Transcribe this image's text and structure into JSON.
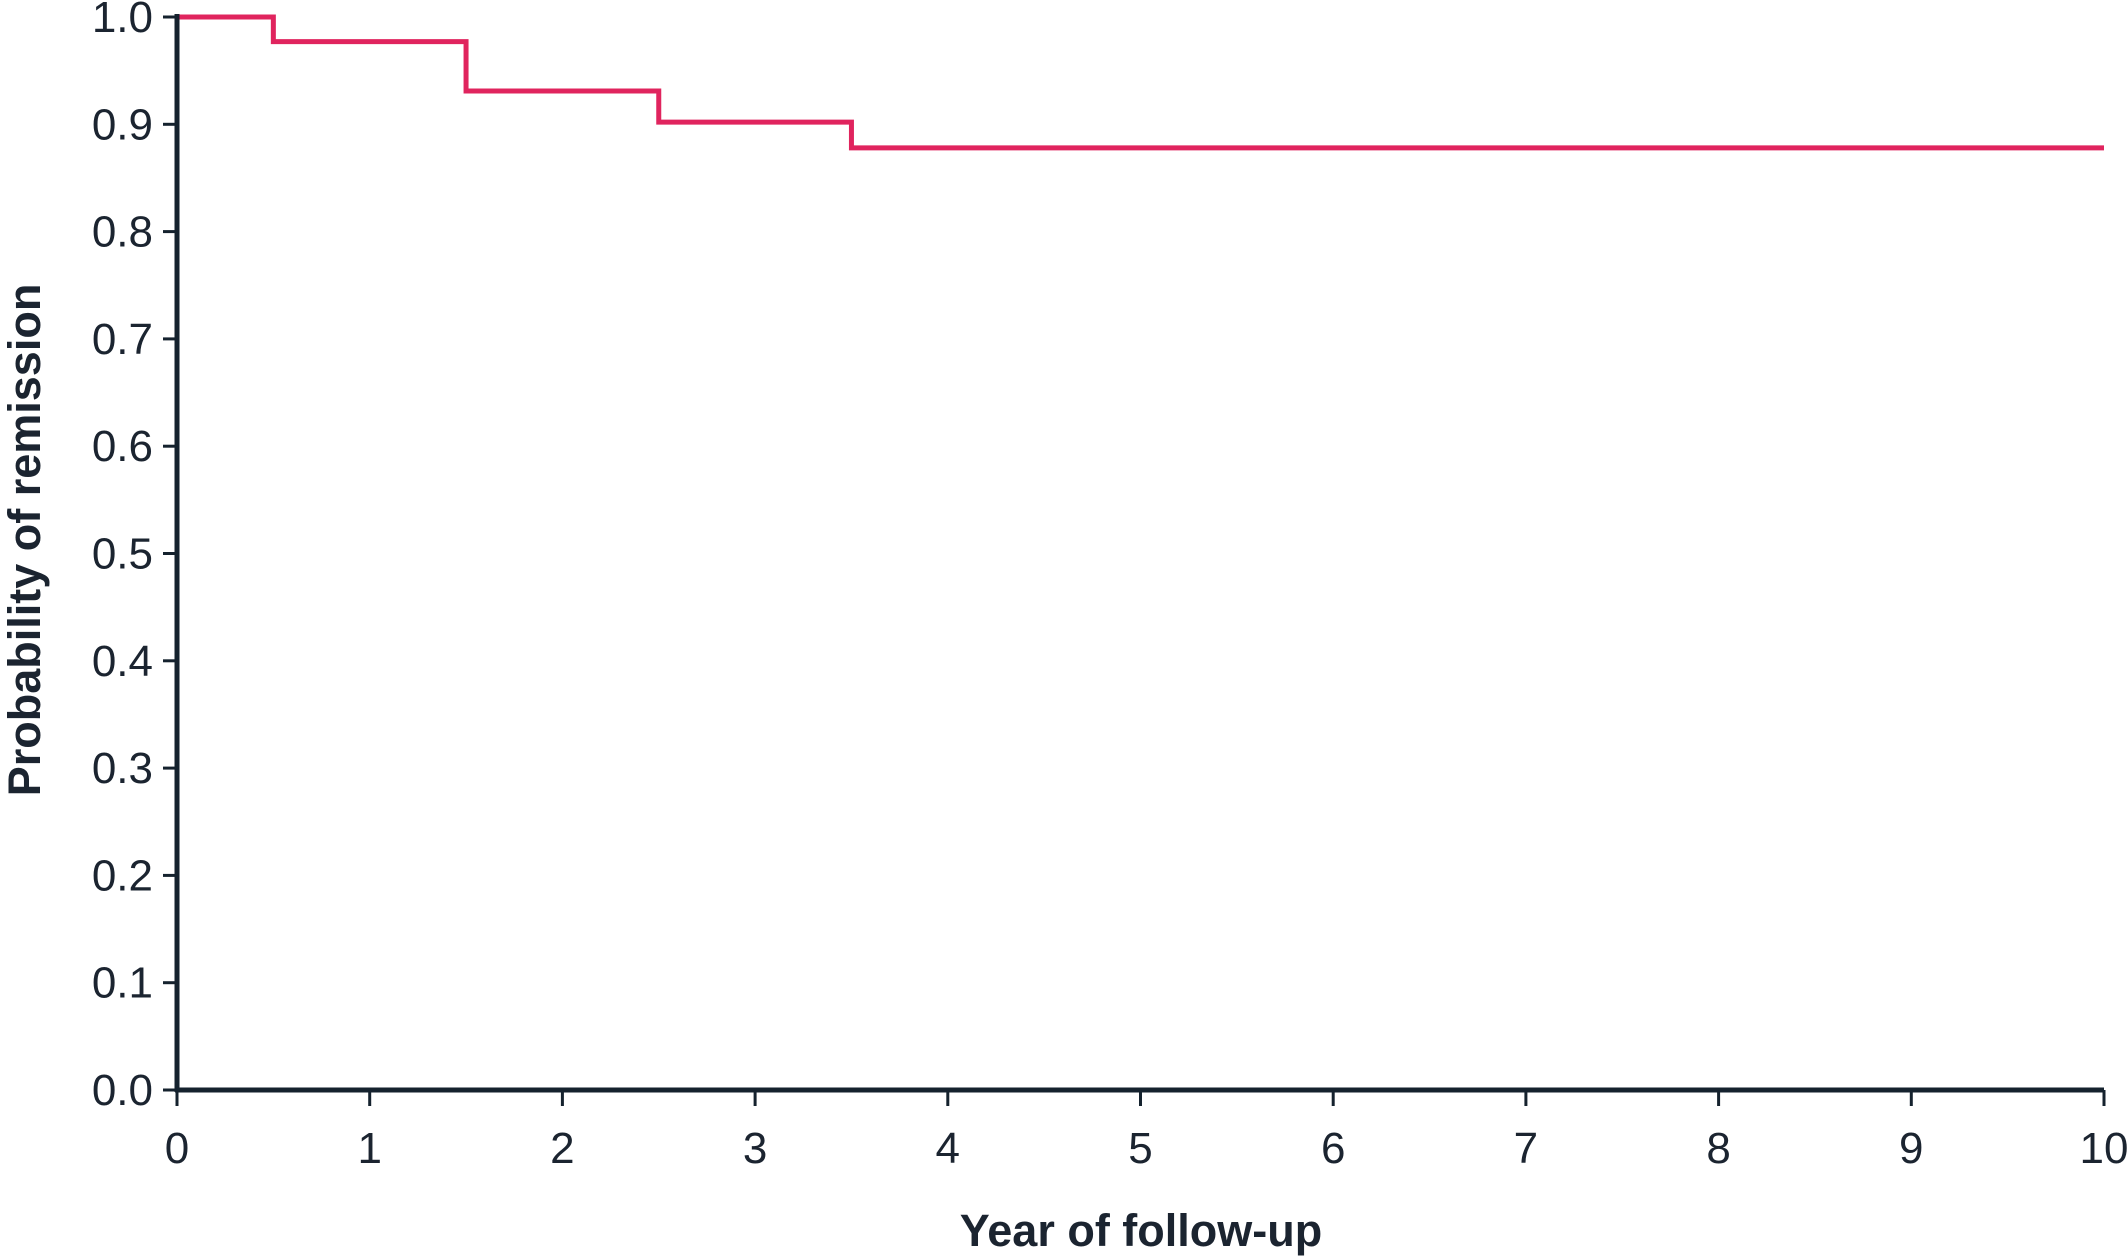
{
  "chart_data": {
    "type": "line",
    "subtype": "step",
    "title": "",
    "xlabel": "Year of follow-up",
    "ylabel": "Probability of remission",
    "xlim": [
      0,
      10
    ],
    "ylim": [
      0.0,
      1.0
    ],
    "x_ticks": [
      "0",
      "1",
      "2",
      "3",
      "4",
      "5",
      "6",
      "7",
      "8",
      "9",
      "10"
    ],
    "y_ticks": [
      "0.0",
      "0.1",
      "0.2",
      "0.3",
      "0.4",
      "0.5",
      "0.6",
      "0.7",
      "0.8",
      "0.9",
      "1.0"
    ],
    "grid": false,
    "legend": "none",
    "colors": {
      "series": "#e0245e",
      "axis": "#15222e",
      "text": "#1b2430"
    },
    "series": [
      {
        "x": [
          0,
          0.5,
          1.5,
          2.5,
          3.5,
          10
        ],
        "y": [
          1.0,
          0.977,
          0.931,
          0.902,
          0.878,
          0.878
        ]
      }
    ]
  }
}
